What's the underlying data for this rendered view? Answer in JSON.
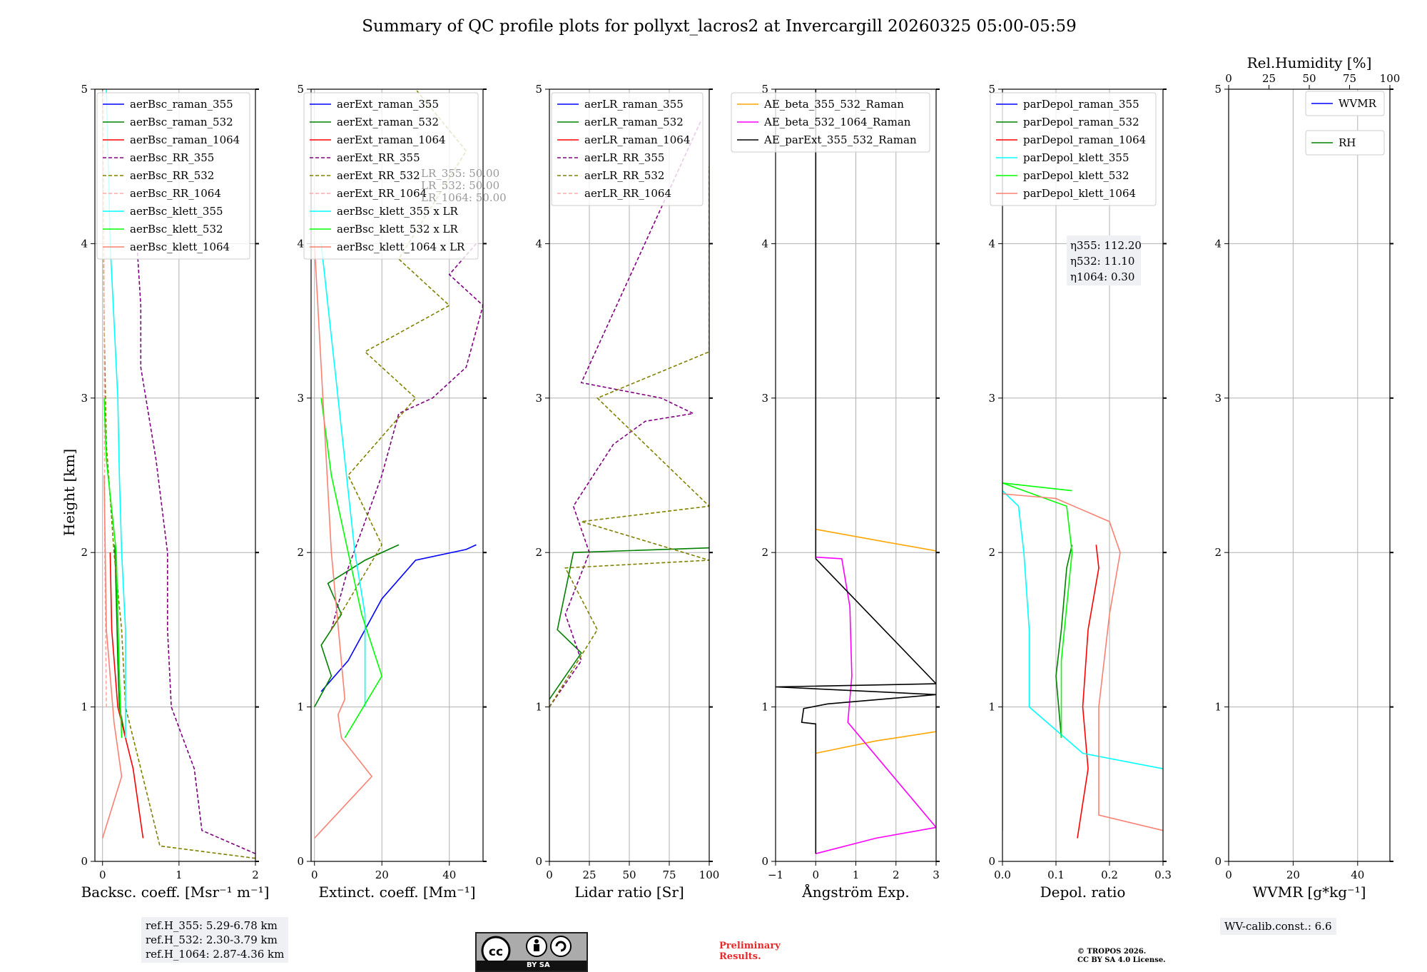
{
  "title": "Summary of QC profile plots for pollyxt_lacros2 at Invercargill 20260325 05:00-05:59",
  "ylabel": "Height [km]",
  "colors": {
    "blue": "#0000ff",
    "green": "#008000",
    "red": "#ff0000",
    "purple": "#800080",
    "olive": "#808000",
    "pink": "#ffaaaa",
    "cyan": "#00ffff",
    "lime": "#00ff00",
    "salmon": "#fa8072",
    "orange": "#ffa500",
    "magenta": "#ff00ff",
    "black": "#000000"
  },
  "chart_data": [
    {
      "type": "line",
      "xlabel": "Backsc. coeff. [Msr⁻¹ m⁻¹]",
      "xlim": [
        -0.1,
        2
      ],
      "ylim": [
        0,
        5
      ],
      "xticks": [
        0,
        1,
        2
      ],
      "xtick_labels": [
        "0",
        "1",
        "2"
      ],
      "yticks": [
        0,
        1,
        2,
        3,
        4,
        5
      ],
      "legend_loc": "top-left",
      "series": [
        {
          "name": "aerBsc_raman_355",
          "color": "blue",
          "dash": false,
          "x": [],
          "y": []
        },
        {
          "name": "aerBsc_raman_532",
          "color": "green",
          "dash": false,
          "x": [
            0.3,
            0.22,
            0.2,
            0.18,
            0.16
          ],
          "y": [
            0.8,
            1.0,
            1.3,
            1.7,
            2.05
          ]
        },
        {
          "name": "aerBsc_raman_1064",
          "color": "red",
          "dash": false,
          "x": [
            0.53,
            0.4,
            0.2,
            0.12,
            0.1
          ],
          "y": [
            0.15,
            0.6,
            1.0,
            1.5,
            2.0
          ]
        },
        {
          "name": "aerBsc_RR_355",
          "color": "purple",
          "dash": true,
          "x": [
            2.0,
            1.3,
            1.25,
            1.2,
            0.9,
            0.85,
            0.85,
            0.7,
            0.5,
            0.5,
            0.45
          ],
          "y": [
            0.05,
            0.2,
            0.4,
            0.6,
            1.0,
            1.5,
            2.0,
            2.6,
            3.2,
            3.6,
            4.0
          ]
        },
        {
          "name": "aerBsc_RR_532",
          "color": "olive",
          "dash": true,
          "x": [
            2.0,
            0.75,
            0.7,
            0.65,
            0.3,
            0.25,
            0.15,
            0.05,
            0.02,
            0.0
          ],
          "y": [
            0.02,
            0.1,
            0.2,
            0.3,
            1.0,
            1.5,
            2.0,
            2.7,
            3.5,
            5.0
          ]
        },
        {
          "name": "aerBsc_RR_1064",
          "color": "pink",
          "dash": true,
          "x": [
            0.05,
            0.03,
            0.02,
            0.01
          ],
          "y": [
            1.0,
            2.0,
            3.5,
            5.0
          ]
        },
        {
          "name": "aerBsc_klett_355",
          "color": "cyan",
          "dash": false,
          "x": [
            0.3,
            0.3,
            0.25,
            0.22,
            0.2,
            0.15,
            0.1,
            0.05
          ],
          "y": [
            0.8,
            1.5,
            2.0,
            2.5,
            3.0,
            3.5,
            4.0,
            5.0
          ]
        },
        {
          "name": "aerBsc_klett_532",
          "color": "lime",
          "dash": false,
          "x": [
            0.25,
            0.22,
            0.18,
            0.05,
            0.02
          ],
          "y": [
            0.8,
            1.2,
            2.0,
            2.6,
            3.0
          ]
        },
        {
          "name": "aerBsc_klett_1064",
          "color": "salmon",
          "dash": false,
          "x": [
            0.0,
            0.25,
            0.15,
            0.05,
            0.02
          ],
          "y": [
            0.15,
            0.55,
            0.9,
            1.5,
            2.5
          ]
        }
      ],
      "info": [
        "ref.H_355: 5.29-6.78 km",
        "ref.H_532: 2.30-3.79 km",
        "ref.H_1064: 2.87-4.36 km"
      ]
    },
    {
      "type": "line",
      "xlabel": "Extinct. coeff. [Mm⁻¹]",
      "xlim": [
        -1,
        50
      ],
      "ylim": [
        0,
        5
      ],
      "xticks": [
        0,
        20,
        40
      ],
      "xtick_labels": [
        "0",
        "20",
        "40"
      ],
      "yticks": [
        0,
        1,
        2,
        3,
        4,
        5
      ],
      "legend_loc": "top-left",
      "series": [
        {
          "name": "aerExt_raman_355",
          "color": "blue",
          "dash": false,
          "x": [
            2,
            10,
            15,
            20,
            30,
            45,
            48
          ],
          "y": [
            1.1,
            1.3,
            1.5,
            1.7,
            1.95,
            2.02,
            2.05
          ]
        },
        {
          "name": "aerExt_raman_532",
          "color": "green",
          "dash": false,
          "x": [
            0,
            5,
            2,
            8,
            4,
            15,
            25
          ],
          "y": [
            1.0,
            1.2,
            1.4,
            1.6,
            1.8,
            1.95,
            2.05
          ]
        },
        {
          "name": "aerExt_raman_1064",
          "color": "red",
          "dash": false,
          "x": [],
          "y": []
        },
        {
          "name": "aerExt_RR_355",
          "color": "purple",
          "dash": true,
          "x": [
            5,
            10,
            15,
            20,
            25,
            35,
            45,
            50,
            40,
            48
          ],
          "y": [
            1.5,
            1.9,
            2.2,
            2.5,
            2.9,
            3.0,
            3.2,
            3.6,
            3.8,
            4.0
          ]
        },
        {
          "name": "aerExt_RR_532",
          "color": "olive",
          "dash": true,
          "x": [
            5,
            20,
            10,
            30,
            15,
            40,
            25,
            45,
            30
          ],
          "y": [
            1.5,
            2.05,
            2.5,
            3.0,
            3.3,
            3.6,
            3.9,
            4.6,
            5.0
          ]
        },
        {
          "name": "aerExt_RR_1064",
          "color": "pink",
          "dash": true,
          "x": [],
          "y": []
        },
        {
          "name": "aerBsc_klett_355 x LR",
          "color": "cyan",
          "dash": false,
          "x": [
            15,
            15,
            12,
            8,
            6,
            4,
            2
          ],
          "y": [
            1.0,
            1.6,
            2.0,
            2.8,
            3.2,
            3.6,
            4.0
          ]
        },
        {
          "name": "aerBsc_klett_532 x LR",
          "color": "lime",
          "dash": false,
          "x": [
            9,
            20,
            14,
            10,
            5,
            2
          ],
          "y": [
            0.8,
            1.2,
            1.6,
            2.0,
            2.5,
            3.0
          ]
        },
        {
          "name": "aerBsc_klett_1064 x LR",
          "color": "salmon",
          "dash": false,
          "x": [
            0,
            17,
            8,
            7,
            9,
            5,
            0
          ],
          "y": [
            0.15,
            0.55,
            0.8,
            0.95,
            1.05,
            2.0,
            4.0
          ]
        }
      ],
      "info": [
        "LR_355: 50.00",
        "LR_532: 50.00",
        "LR_1064: 50.00"
      ]
    },
    {
      "type": "line",
      "xlabel": "Lidar ratio [Sr]",
      "xlim": [
        0,
        100
      ],
      "ylim": [
        0,
        5
      ],
      "xticks": [
        0,
        25,
        50,
        75,
        100
      ],
      "xtick_labels": [
        "0",
        "25",
        "50",
        "75",
        "100"
      ],
      "yticks": [
        0,
        1,
        2,
        3,
        4,
        5
      ],
      "legend_loc": "top-left",
      "series": [
        {
          "name": "aerLR_raman_355",
          "color": "blue",
          "dash": false,
          "x": [],
          "y": []
        },
        {
          "name": "aerLR_raman_532",
          "color": "green",
          "dash": false,
          "x": [
            0,
            10,
            20,
            5,
            15,
            100
          ],
          "y": [
            1.05,
            1.2,
            1.35,
            1.5,
            2.0,
            2.03
          ]
        },
        {
          "name": "aerLR_raman_1064",
          "color": "red",
          "dash": false,
          "x": [],
          "y": []
        },
        {
          "name": "aerLR_RR_355",
          "color": "purple",
          "dash": true,
          "x": [
            0,
            20,
            10,
            25,
            15,
            40,
            60,
            90,
            70,
            20,
            95
          ],
          "y": [
            1.0,
            1.3,
            1.6,
            2.0,
            2.3,
            2.7,
            2.85,
            2.9,
            3.0,
            3.1,
            4.8
          ]
        },
        {
          "name": "aerLR_RR_532",
          "color": "olive",
          "dash": true,
          "x": [
            0,
            30,
            10,
            100,
            20,
            100,
            30,
            100,
            100
          ],
          "y": [
            1.0,
            1.5,
            1.9,
            1.95,
            2.2,
            2.3,
            3.0,
            3.3,
            4.5
          ]
        },
        {
          "name": "aerLR_RR_1064",
          "color": "pink",
          "dash": true,
          "x": [],
          "y": []
        }
      ]
    },
    {
      "type": "line",
      "xlabel": "Ångström Exp.",
      "xlim": [
        -1,
        3
      ],
      "ylim": [
        0,
        5
      ],
      "xticks": [
        -1,
        0,
        1,
        2,
        3
      ],
      "xtick_labels": [
        "−1",
        "0",
        "1",
        "2",
        "3"
      ],
      "yticks": [
        0,
        1,
        2,
        3,
        4,
        5
      ],
      "legend_loc": "top-right",
      "series": [
        {
          "name": "AE_beta_355_532_Raman",
          "color": "orange",
          "dash": false,
          "x": [
            0.0,
            1.5,
            3.0,
            3.0,
            1.5,
            0.0
          ],
          "y": [
            0.7,
            0.78,
            0.84,
            2.01,
            2.08,
            2.15
          ]
        },
        {
          "name": "AE_beta_532_1064_Raman",
          "color": "magenta",
          "dash": false,
          "x": [
            0.0,
            1.5,
            3.0,
            0.8,
            0.9,
            0.85,
            0.65,
            0.0
          ],
          "y": [
            0.05,
            0.15,
            0.22,
            0.9,
            1.2,
            1.65,
            1.96,
            1.97
          ]
        },
        {
          "name": "AE_parExt_355_532_Raman",
          "color": "black",
          "dash": false,
          "x": [
            0.0,
            0.0,
            -0.35,
            -0.3,
            0.3,
            3.0,
            -1.0,
            3.0,
            0.0,
            0.0
          ],
          "y": [
            0.05,
            0.89,
            0.9,
            0.99,
            1.02,
            1.08,
            1.13,
            1.15,
            1.96,
            5.0
          ]
        }
      ]
    },
    {
      "type": "line",
      "xlabel": "Depol. ratio",
      "xlim": [
        0,
        0.3
      ],
      "ylim": [
        0,
        5
      ],
      "xticks": [
        0,
        0.1,
        0.2,
        0.3
      ],
      "xtick_labels": [
        "0.0",
        "0.1",
        "0.2",
        "0.3"
      ],
      "yticks": [
        0,
        1,
        2,
        3,
        4,
        5
      ],
      "legend_loc": "top-left",
      "series": [
        {
          "name": "parDepol_raman_355",
          "color": "blue",
          "dash": false,
          "x": [],
          "y": []
        },
        {
          "name": "parDepol_raman_532",
          "color": "green",
          "dash": false,
          "x": [
            0.11,
            0.1,
            0.11,
            0.12,
            0.13
          ],
          "y": [
            0.8,
            1.2,
            1.5,
            1.9,
            2.05
          ]
        },
        {
          "name": "parDepol_raman_1064",
          "color": "red",
          "dash": false,
          "x": [
            0.14,
            0.16,
            0.15,
            0.16,
            0.18,
            0.175
          ],
          "y": [
            0.15,
            0.6,
            1.0,
            1.5,
            1.9,
            2.05
          ]
        },
        {
          "name": "parDepol_klett_355",
          "color": "cyan",
          "dash": false,
          "x": [
            0.3,
            0.15,
            0.05,
            0.05,
            0.04,
            0.03,
            0.0,
            0.0
          ],
          "y": [
            0.6,
            0.7,
            1.0,
            1.5,
            2.0,
            2.3,
            2.4,
            0.2
          ]
        },
        {
          "name": "parDepol_klett_532",
          "color": "lime",
          "dash": false,
          "x": [
            0.11,
            0.11,
            0.13,
            0.12,
            0.0,
            0.13
          ],
          "y": [
            0.8,
            1.3,
            2.0,
            2.3,
            2.45,
            2.4
          ]
        },
        {
          "name": "parDepol_klett_1064",
          "color": "salmon",
          "dash": false,
          "x": [
            0.3,
            0.18,
            0.18,
            0.2,
            0.22,
            0.2,
            0.1,
            0.0
          ],
          "y": [
            0.2,
            0.3,
            1.0,
            1.6,
            2.0,
            2.2,
            2.35,
            2.38
          ]
        }
      ],
      "info": [
        "η355: 112.20",
        "η532: 11.10",
        "η1064: 0.30"
      ]
    },
    {
      "type": "line",
      "xlabel": "WVMR [g*kg⁻¹]",
      "xlim": [
        0,
        50
      ],
      "ylim": [
        0,
        5
      ],
      "xticks": [
        0,
        20,
        40
      ],
      "xtick_labels": [
        "0",
        "20",
        "40"
      ],
      "yticks": [
        0,
        1,
        2,
        3,
        4,
        5
      ],
      "top_axis": {
        "label": "Rel.Humidity [%]",
        "xlim": [
          0,
          100
        ],
        "xticks": [
          0,
          25,
          50,
          75,
          100
        ],
        "xtick_labels": [
          "0",
          "25",
          "50",
          "75",
          "100"
        ]
      },
      "legend_loc": "top-right",
      "series": [
        {
          "name": "WVMR",
          "color": "blue",
          "dash": false,
          "x": [],
          "y": []
        },
        {
          "name": "RH",
          "color": "green",
          "dash": false,
          "x": [],
          "y": []
        }
      ],
      "info": [
        "WV-calib.const.: 6.6"
      ]
    }
  ],
  "footer": {
    "cc_label": "BY    SA",
    "preliminary": [
      "Preliminary",
      "Results."
    ],
    "copyright": [
      "© TROPOS 2026.",
      "CC BY SA 4.0 License."
    ]
  }
}
